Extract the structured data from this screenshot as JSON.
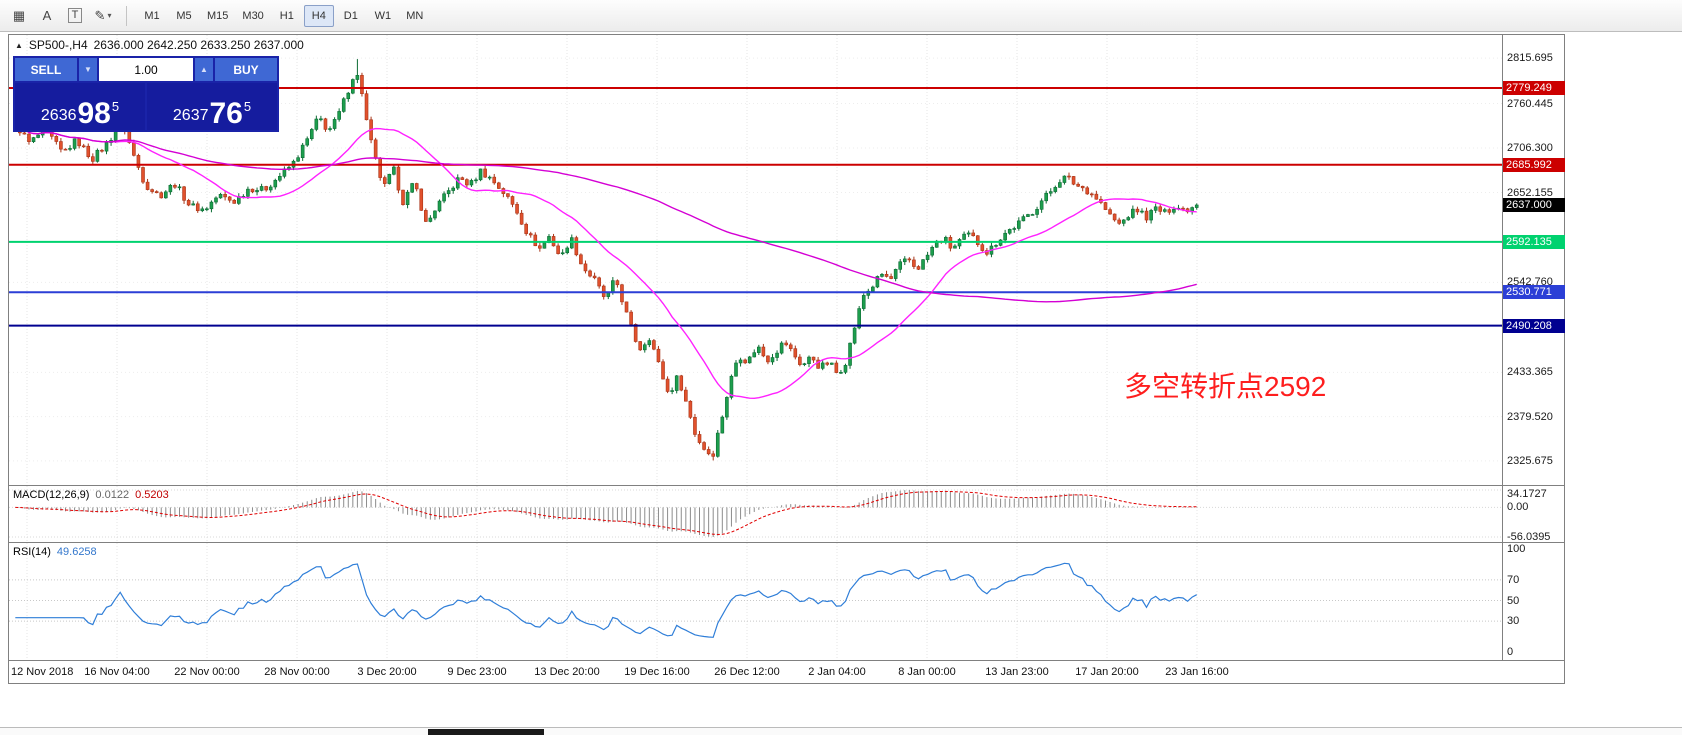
{
  "toolbar": {
    "tools": [
      {
        "name": "crosshair-grid",
        "glyph": "▦"
      },
      {
        "name": "text-label",
        "glyph": "A"
      },
      {
        "name": "text-frame",
        "glyph": "T",
        "boxed": true
      },
      {
        "name": "draw-tools",
        "glyph": "✎",
        "caret": "▾"
      }
    ],
    "timeframes": [
      "M1",
      "M5",
      "M15",
      "M30",
      "H1",
      "H4",
      "D1",
      "W1",
      "MN"
    ],
    "active_timeframe": "H4"
  },
  "chart": {
    "collapse_icon": "▲",
    "title_symbol": "SP500-,H4",
    "title_ohlc": "2636.000 2642.250 2633.250 2637.000",
    "trade_panel": {
      "sell_label": "SELL",
      "buy_label": "BUY",
      "quantity": "1.00",
      "decrease_icon": "▼",
      "increase_icon": "▲",
      "sell_prefix": "2636",
      "sell_large": "98",
      "sell_sup": "5",
      "buy_prefix": "2637",
      "buy_large": "76",
      "buy_sup": "5"
    },
    "annotation": "多空转折点2592",
    "axis": {
      "range_top": 2843.8,
      "range_bottom": 2296.3,
      "ticks": [
        "2815.695",
        "2760.445",
        "2706.300",
        "2652.155",
        "2542.760",
        "2433.365",
        "2379.520",
        "2325.675"
      ],
      "tick_values": [
        2815.695,
        2760.445,
        2706.3,
        2652.155,
        2542.76,
        2433.365,
        2379.52,
        2325.675
      ]
    }
  },
  "chart_data": {
    "type": "candlestick",
    "symbol": "SP500-",
    "timeframe": "H4",
    "ohlc_current": {
      "open": 2636.0,
      "high": 2642.25,
      "low": 2633.25,
      "close": 2637.0
    },
    "bid": "2636.985",
    "ask": "2637.765",
    "num_candles": 260,
    "up_color": "#1d9e4d",
    "up_border": "#0b6b33",
    "down_color": "#e1512d",
    "down_border": "#a83417",
    "levels": [
      {
        "name": "resistance-upper",
        "price": 2779.249,
        "label": "2779.249",
        "color": "#cc0000",
        "width": 2
      },
      {
        "name": "resistance-lower",
        "price": 2685.992,
        "label": "2685.992",
        "color": "#cc0000",
        "width": 2
      },
      {
        "name": "pivot-green",
        "price": 2592.135,
        "label": "2592.135",
        "color": "#00d26f",
        "width": 2
      },
      {
        "name": "support-upper",
        "price": 2530.771,
        "label": "2530.771",
        "color": "#2b3fd6",
        "width": 2
      },
      {
        "name": "support-lower",
        "price": 2490.208,
        "label": "2490.208",
        "color": "#000090",
        "width": 2
      }
    ],
    "current_price_tag": {
      "price": 2637.0,
      "label": "2637.000",
      "color": "#000000"
    },
    "moving_averages": [
      {
        "window": 22,
        "color": "#ff22ff"
      },
      {
        "window": 120,
        "color": "#d400d4"
      }
    ],
    "macd": {
      "label": "MACD(12,26,9)",
      "value_main": "0.0122",
      "value_signal": "0.5203",
      "params": [
        12,
        26,
        9
      ],
      "axis_max": "34.1727",
      "axis_zero": "0.00",
      "axis_min": "-56.0395"
    },
    "rsi": {
      "label": "RSI(14)",
      "value": "49.6258",
      "period": 14,
      "axis": [
        "100",
        "70",
        "50",
        "30",
        "0"
      ],
      "axis_values": [
        100,
        70,
        50,
        30,
        0
      ],
      "levels": [
        70,
        50,
        30
      ],
      "line_color": "#2f7ed8"
    },
    "time_labels": [
      "12 Nov 2018",
      "16 Nov 04:00",
      "22 Nov 00:00",
      "28 Nov 00:00",
      "3 Dec 20:00",
      "9 Dec 23:00",
      "13 Dec 20:00",
      "19 Dec 16:00",
      "26 Dec 12:00",
      "2 Jan 04:00",
      "8 Jan 00:00",
      "13 Jan 23:00",
      "17 Jan 20:00",
      "23 Jan 16:00"
    ],
    "price_waypoints": [
      [
        0.0,
        2736
      ],
      [
        0.012,
        2712
      ],
      [
        0.025,
        2729
      ],
      [
        0.04,
        2700
      ],
      [
        0.052,
        2716
      ],
      [
        0.065,
        2693
      ],
      [
        0.078,
        2712
      ],
      [
        0.09,
        2740
      ],
      [
        0.1,
        2698
      ],
      [
        0.11,
        2662
      ],
      [
        0.122,
        2648
      ],
      [
        0.135,
        2663
      ],
      [
        0.148,
        2636
      ],
      [
        0.16,
        2631
      ],
      [
        0.172,
        2649
      ],
      [
        0.185,
        2641
      ],
      [
        0.198,
        2658
      ],
      [
        0.21,
        2655
      ],
      [
        0.222,
        2670
      ],
      [
        0.235,
        2687
      ],
      [
        0.247,
        2716
      ],
      [
        0.257,
        2744
      ],
      [
        0.265,
        2727
      ],
      [
        0.272,
        2741
      ],
      [
        0.28,
        2770
      ],
      [
        0.287,
        2798
      ],
      [
        0.292,
        2788
      ],
      [
        0.297,
        2741
      ],
      [
        0.303,
        2700
      ],
      [
        0.312,
        2657
      ],
      [
        0.32,
        2681
      ],
      [
        0.328,
        2641
      ],
      [
        0.338,
        2664
      ],
      [
        0.348,
        2612
      ],
      [
        0.356,
        2634
      ],
      [
        0.366,
        2652
      ],
      [
        0.376,
        2670
      ],
      [
        0.385,
        2661
      ],
      [
        0.394,
        2679
      ],
      [
        0.404,
        2667
      ],
      [
        0.414,
        2651
      ],
      [
        0.424,
        2631
      ],
      [
        0.434,
        2601
      ],
      [
        0.444,
        2584
      ],
      [
        0.452,
        2599
      ],
      [
        0.462,
        2572
      ],
      [
        0.47,
        2598
      ],
      [
        0.48,
        2562
      ],
      [
        0.49,
        2546
      ],
      [
        0.5,
        2521
      ],
      [
        0.508,
        2548
      ],
      [
        0.518,
        2501
      ],
      [
        0.528,
        2461
      ],
      [
        0.537,
        2477
      ],
      [
        0.545,
        2441
      ],
      [
        0.553,
        2406
      ],
      [
        0.561,
        2429
      ],
      [
        0.569,
        2391
      ],
      [
        0.576,
        2356
      ],
      [
        0.583,
        2341
      ],
      [
        0.59,
        2331
      ],
      [
        0.597,
        2372
      ],
      [
        0.605,
        2421
      ],
      [
        0.612,
        2455
      ],
      [
        0.62,
        2446
      ],
      [
        0.628,
        2466
      ],
      [
        0.636,
        2448
      ],
      [
        0.644,
        2459
      ],
      [
        0.651,
        2471
      ],
      [
        0.659,
        2455
      ],
      [
        0.666,
        2441
      ],
      [
        0.674,
        2453
      ],
      [
        0.681,
        2439
      ],
      [
        0.689,
        2446
      ],
      [
        0.696,
        2431
      ],
      [
        0.703,
        2447
      ],
      [
        0.711,
        2492
      ],
      [
        0.718,
        2527
      ],
      [
        0.726,
        2539
      ],
      [
        0.733,
        2553
      ],
      [
        0.741,
        2546
      ],
      [
        0.748,
        2563
      ],
      [
        0.756,
        2571
      ],
      [
        0.763,
        2559
      ],
      [
        0.771,
        2573
      ],
      [
        0.778,
        2589
      ],
      [
        0.786,
        2597
      ],
      [
        0.793,
        2583
      ],
      [
        0.801,
        2596
      ],
      [
        0.808,
        2601
      ],
      [
        0.816,
        2589
      ],
      [
        0.823,
        2579
      ],
      [
        0.831,
        2593
      ],
      [
        0.838,
        2603
      ],
      [
        0.846,
        2611
      ],
      [
        0.853,
        2619
      ],
      [
        0.861,
        2629
      ],
      [
        0.868,
        2641
      ],
      [
        0.876,
        2653
      ],
      [
        0.883,
        2667
      ],
      [
        0.89,
        2671
      ],
      [
        0.898,
        2661
      ],
      [
        0.905,
        2657
      ],
      [
        0.913,
        2649
      ],
      [
        0.92,
        2637
      ],
      [
        0.928,
        2621
      ],
      [
        0.935,
        2613
      ],
      [
        0.943,
        2626
      ],
      [
        0.95,
        2631
      ],
      [
        0.958,
        2622
      ],
      [
        0.965,
        2633
      ],
      [
        0.973,
        2627
      ],
      [
        0.98,
        2636
      ],
      [
        0.99,
        2631
      ],
      [
        1.0,
        2637
      ]
    ]
  }
}
